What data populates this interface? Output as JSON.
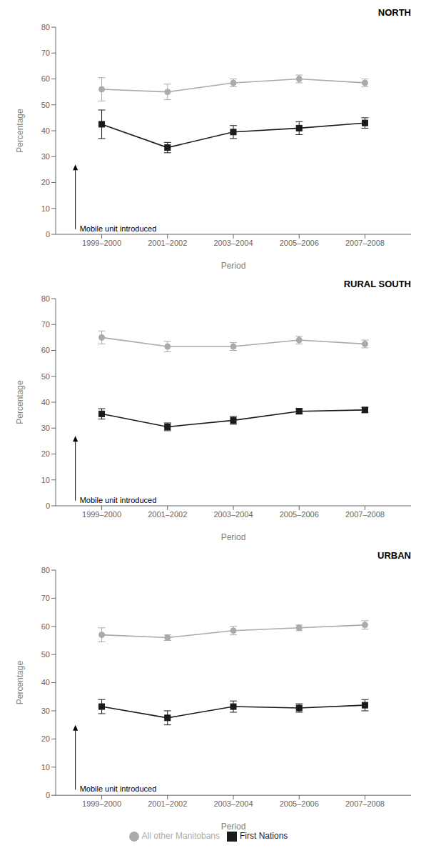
{
  "chart_data": [
    {
      "type": "line",
      "title": "NORTH",
      "x": [
        1,
        2,
        3,
        4,
        5
      ],
      "xlabel": "Period",
      "ylabel": "Percentage",
      "xlim": [
        0.3,
        5.7
      ],
      "xticks": [
        {
          "value": 1,
          "label": "1999–2000"
        },
        {
          "value": 2,
          "label": "2001–2002"
        },
        {
          "value": 3,
          "label": "2003–2004"
        },
        {
          "value": 4,
          "label": "2005–2006"
        },
        {
          "value": 5,
          "label": "2007–2008"
        }
      ],
      "ylim": [
        0,
        80
      ],
      "yticks": [
        0,
        10,
        20,
        30,
        40,
        50,
        60,
        70,
        80
      ],
      "grid": false,
      "series": [
        {
          "name": "All other Manitobans",
          "color": "#aaaaaa",
          "marker": "circle",
          "values": [
            56.0,
            55.0,
            58.5,
            60.0,
            58.5
          ],
          "error": [
            4.5,
            3.0,
            1.5,
            1.5,
            1.5
          ]
        },
        {
          "name": "First Nations",
          "color": "#1a1a1a",
          "marker": "square",
          "values": [
            42.5,
            33.5,
            39.5,
            41.0,
            43.0
          ],
          "error": [
            5.5,
            2.0,
            2.5,
            2.5,
            2.0
          ]
        }
      ],
      "annotations": [
        {
          "text": "Mobile unit introduced",
          "arrow_x": 0.6,
          "arrow_y_start": 2,
          "arrow_y_end": 27
        }
      ]
    },
    {
      "type": "line",
      "title": "RURAL SOUTH",
      "x": [
        1,
        2,
        3,
        4,
        5
      ],
      "xlabel": "Period",
      "ylabel": "Percentage",
      "xlim": [
        0.3,
        5.7
      ],
      "xticks": [
        {
          "value": 1,
          "label": "1999–2000"
        },
        {
          "value": 2,
          "label": "2001–2002"
        },
        {
          "value": 3,
          "label": "2003–2004"
        },
        {
          "value": 4,
          "label": "2005–2006"
        },
        {
          "value": 5,
          "label": "2007–2008"
        }
      ],
      "ylim": [
        0,
        80
      ],
      "yticks": [
        0,
        10,
        20,
        30,
        40,
        50,
        60,
        70,
        80
      ],
      "grid": false,
      "series": [
        {
          "name": "All other Manitobans",
          "color": "#aaaaaa",
          "marker": "circle",
          "values": [
            65.0,
            61.5,
            61.5,
            64.0,
            62.5
          ],
          "error": [
            2.5,
            2.0,
            1.5,
            1.5,
            1.5
          ]
        },
        {
          "name": "First Nations",
          "color": "#1a1a1a",
          "marker": "square",
          "values": [
            35.5,
            30.5,
            33.0,
            36.5,
            37.0
          ],
          "error": [
            2.0,
            1.5,
            1.5,
            1.0,
            1.0
          ]
        }
      ],
      "annotations": [
        {
          "text": "Mobile unit introduced",
          "arrow_x": 0.6,
          "arrow_y_start": 2,
          "arrow_y_end": 27
        }
      ]
    },
    {
      "type": "line",
      "title": "URBAN",
      "x": [
        1,
        2,
        3,
        4,
        5
      ],
      "xlabel": "Period",
      "ylabel": "Percentage",
      "xlim": [
        0.3,
        5.7
      ],
      "xticks": [
        {
          "value": 1,
          "label": "1999–2000"
        },
        {
          "value": 2,
          "label": "2001–2002"
        },
        {
          "value": 3,
          "label": "2003–2004"
        },
        {
          "value": 4,
          "label": "2005–2006"
        },
        {
          "value": 5,
          "label": "2007–2008"
        }
      ],
      "ylim": [
        0,
        80
      ],
      "yticks": [
        0,
        10,
        20,
        30,
        40,
        50,
        60,
        70,
        80
      ],
      "grid": false,
      "legend": "bottom",
      "series": [
        {
          "name": "All other Manitobans",
          "color": "#aaaaaa",
          "marker": "circle",
          "values": [
            57.0,
            56.0,
            58.5,
            59.5,
            60.5
          ],
          "error": [
            2.5,
            1.0,
            1.5,
            1.0,
            1.5
          ]
        },
        {
          "name": "First Nations",
          "color": "#1a1a1a",
          "marker": "square",
          "values": [
            31.5,
            27.5,
            31.5,
            31.0,
            32.0
          ],
          "error": [
            2.5,
            2.5,
            2.0,
            1.5,
            2.0
          ]
        }
      ],
      "annotations": [
        {
          "text": "Mobile unit introduced",
          "arrow_x": 0.6,
          "arrow_y_start": 2,
          "arrow_y_end": 25
        }
      ]
    }
  ]
}
